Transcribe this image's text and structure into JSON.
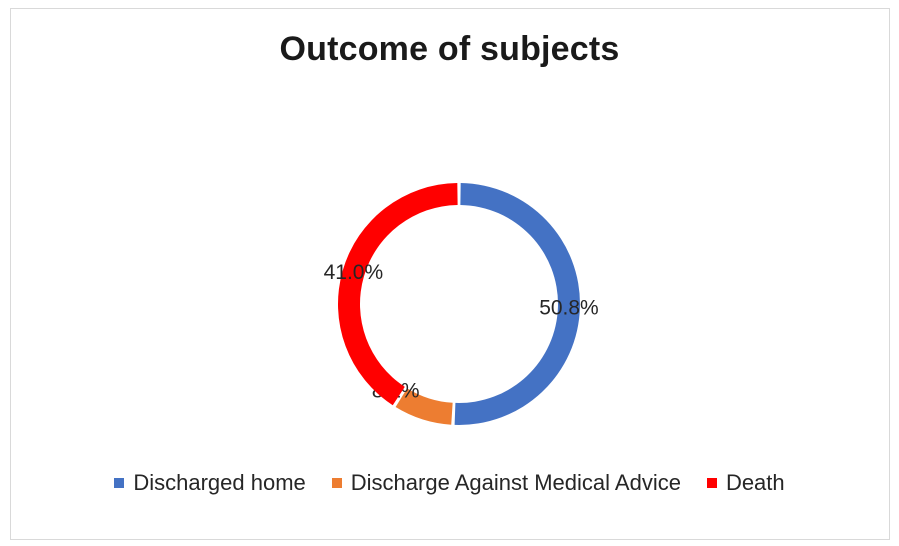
{
  "chart_data": {
    "type": "pie",
    "variant": "donut",
    "title": "Outcome of subjects",
    "legend_position": "bottom",
    "slices": [
      {
        "label": "Discharged home",
        "value": 50.8,
        "display": "50.8%",
        "color": "#4472c4"
      },
      {
        "label": "Discharge Against Medical Advice",
        "value": 8.2,
        "display": "8.2%",
        "color": "#ed7d31"
      },
      {
        "label": "Death",
        "value": 41.0,
        "display": "41.0%",
        "color": "#ff0000"
      }
    ]
  }
}
